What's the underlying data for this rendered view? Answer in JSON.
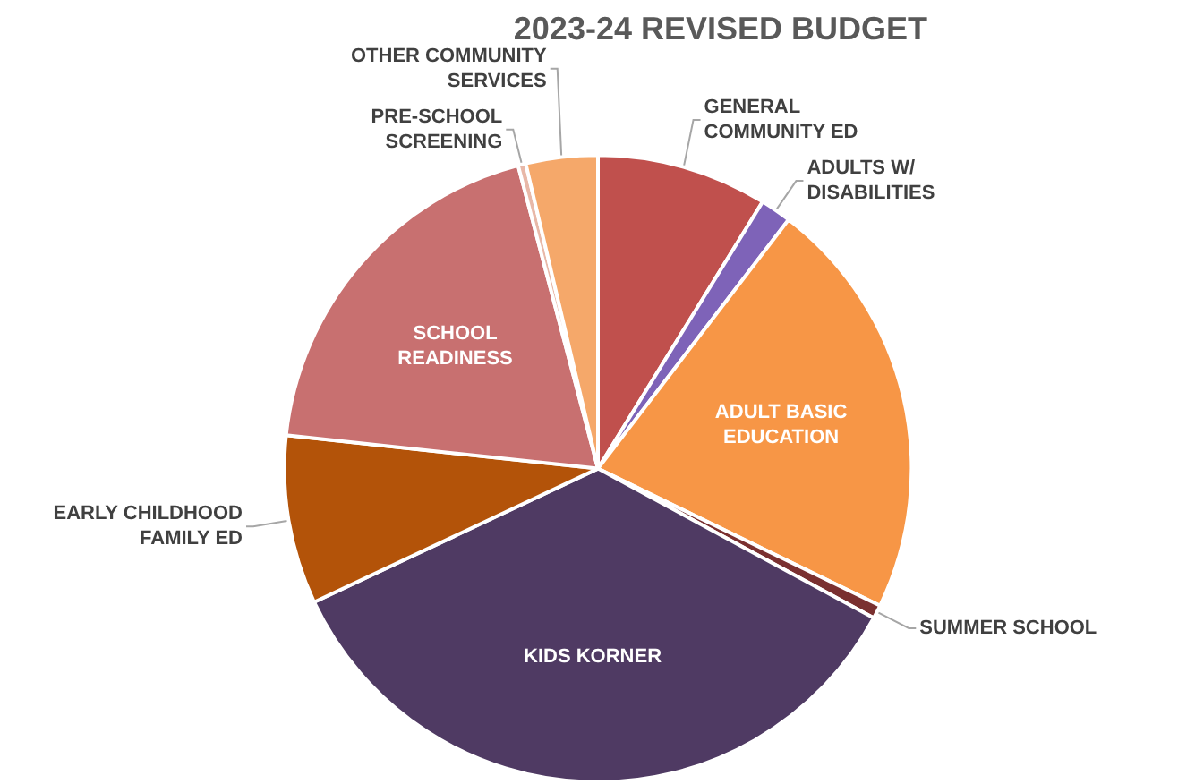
{
  "chart_data": {
    "type": "pie",
    "title": "2023-24 REVISED BUDGET",
    "categories": [
      "GENERAL COMMUNITY ED",
      "ADULTS W/ DISABILITIES",
      "ADULT BASIC EDUCATION",
      "SUMMER SCHOOL",
      "KIDS KORNER",
      "EARLY CHILDHOOD FAMILY ED",
      "SCHOOL READINESS",
      "PRE-SCHOOL SCREENING",
      "OTHER COMMUNITY SERVICES"
    ],
    "values": [
      8.8,
      1.6,
      21.8,
      0.7,
      35.1,
      8.7,
      19.2,
      0.4,
      3.7
    ],
    "colors": [
      "#c0504d",
      "#7e63b8",
      "#f79646",
      "#7a3030",
      "#4f3a63",
      "#b35309",
      "#c87070",
      "#e8b8a8",
      "#f5a86a"
    ]
  }
}
